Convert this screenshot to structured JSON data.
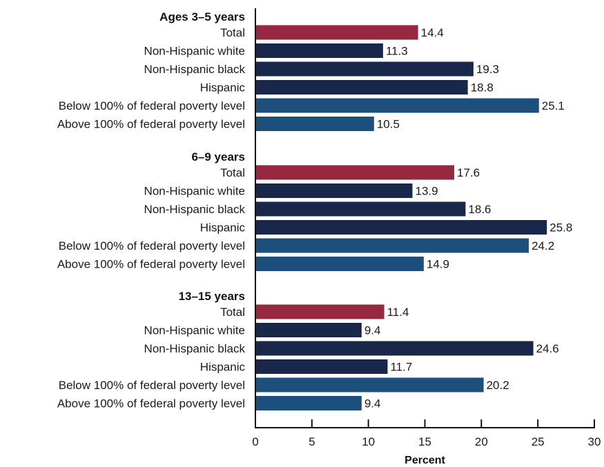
{
  "chart_data": {
    "type": "bar",
    "orientation": "horizontal",
    "xlabel": "Percent",
    "xlim": [
      0,
      30
    ],
    "xticks": [
      0,
      5,
      10,
      15,
      20,
      25,
      30
    ],
    "grid": false,
    "colors": {
      "Total": "#96293f",
      "Non-Hispanic white": "#19284a",
      "Non-Hispanic black": "#19284a",
      "Hispanic": "#19284a",
      "Below 100% of federal poverty level": "#1d4f7d",
      "Above 100% of federal poverty level": "#1d4f7d"
    },
    "groups": [
      {
        "title": "Ages 3–5 years",
        "categories": [
          "Total",
          "Non-Hispanic white",
          "Non-Hispanic black",
          "Hispanic",
          "Below 100% of federal poverty level",
          "Above 100% of federal poverty level"
        ],
        "values": [
          14.4,
          11.3,
          19.3,
          18.8,
          25.1,
          10.5
        ],
        "value_labels": [
          "14.4",
          "11.3",
          "19.3",
          "18.8",
          "25.1",
          "10.5"
        ]
      },
      {
        "title": "6–9 years",
        "categories": [
          "Total",
          "Non-Hispanic white",
          "Non-Hispanic black",
          "Hispanic",
          "Below 100% of federal poverty level",
          "Above 100% of federal poverty level"
        ],
        "values": [
          17.6,
          13.9,
          18.6,
          25.8,
          24.2,
          14.9
        ],
        "value_labels": [
          "17.6",
          "13.9",
          "18.6",
          "25.8",
          "24.2",
          "14.9"
        ]
      },
      {
        "title": "13–15 years",
        "categories": [
          "Total",
          "Non-Hispanic white",
          "Non-Hispanic black",
          "Hispanic",
          "Below 100% of federal poverty level",
          "Above 100% of federal poverty level"
        ],
        "values": [
          11.4,
          9.4,
          24.6,
          11.7,
          20.2,
          9.4
        ],
        "value_labels": [
          "11.4",
          "9.4",
          "24.6",
          "11.7",
          "20.2",
          "9.4"
        ]
      }
    ]
  }
}
